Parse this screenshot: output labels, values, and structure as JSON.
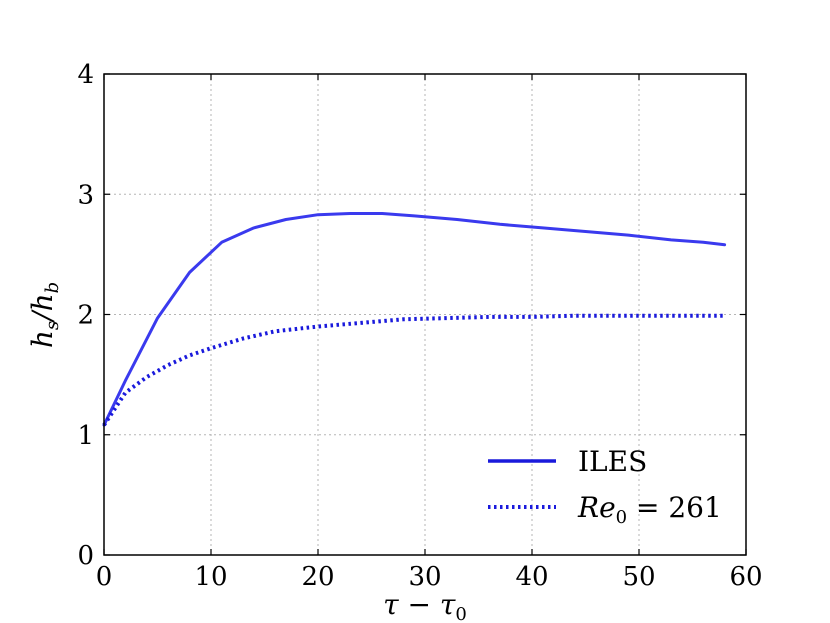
{
  "chart_data": {
    "type": "line",
    "title": "",
    "xlabel": "τ − τ",
    "xlabel_sub": "0",
    "ylabel": "h",
    "ylabel_sub1": "s",
    "ylabel_sep": "/h",
    "ylabel_sub2": "b",
    "xlim": [
      0,
      60
    ],
    "ylim": [
      0,
      4
    ],
    "xticks": [
      "0",
      "10",
      "20",
      "30",
      "40",
      "50",
      "60"
    ],
    "yticks": [
      "0",
      "1",
      "2",
      "3",
      "4"
    ],
    "grid": true,
    "legend_position": "bottom-right",
    "series": [
      {
        "name": "ILES",
        "style": "solid",
        "color": "#3a3aee",
        "x": [
          0,
          2,
          5,
          8,
          11,
          14,
          17,
          20,
          23,
          26,
          29,
          33,
          37,
          41,
          45,
          49,
          53,
          56,
          58
        ],
        "y": [
          1.08,
          1.45,
          1.97,
          2.35,
          2.6,
          2.72,
          2.79,
          2.83,
          2.84,
          2.84,
          2.82,
          2.79,
          2.75,
          2.72,
          2.69,
          2.66,
          2.62,
          2.6,
          2.58
        ]
      },
      {
        "name": "Re",
        "name_sub": "0",
        "name_suffix": " = 261",
        "style": "dotted",
        "color": "#1a1adc",
        "x": [
          0,
          2,
          4,
          6,
          8,
          10,
          13,
          16,
          20,
          24,
          28,
          32,
          36,
          40,
          44,
          48,
          52,
          56,
          58
        ],
        "y": [
          1.08,
          1.35,
          1.48,
          1.58,
          1.66,
          1.72,
          1.8,
          1.86,
          1.9,
          1.93,
          1.96,
          1.97,
          1.98,
          1.98,
          1.99,
          1.99,
          1.99,
          1.99,
          1.99
        ]
      }
    ]
  }
}
